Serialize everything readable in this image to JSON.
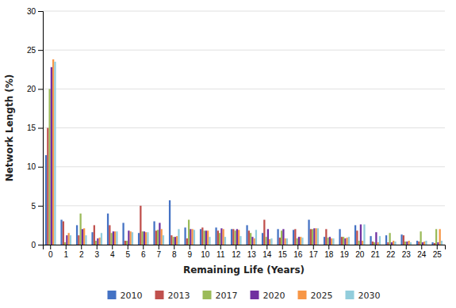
{
  "chart_data": {
    "type": "bar",
    "xlabel": "Remaining Life (Years)",
    "ylabel": "Network Length (%)",
    "categories": [
      0,
      1,
      2,
      3,
      4,
      5,
      6,
      7,
      8,
      9,
      10,
      11,
      12,
      13,
      14,
      15,
      16,
      17,
      18,
      19,
      20,
      21,
      22,
      23,
      24,
      25
    ],
    "series": [
      {
        "name": "2010",
        "color": "#4472C4",
        "values": [
          11.5,
          3.2,
          2.5,
          1.6,
          4.0,
          2.8,
          1.5,
          3.0,
          5.7,
          2.2,
          2.0,
          2.2,
          2.0,
          2.5,
          1.5,
          2.0,
          1.9,
          3.2,
          1.0,
          2.0,
          2.5,
          1.1,
          1.2,
          1.3,
          0.5,
          0.3
        ]
      },
      {
        "name": "2013",
        "color": "#C0504D",
        "values": [
          15.0,
          3.0,
          1.2,
          2.5,
          2.5,
          0.5,
          5.0,
          1.8,
          1.2,
          0.8,
          2.2,
          1.8,
          2.0,
          1.8,
          3.2,
          0.9,
          2.0,
          2.0,
          2.0,
          1.0,
          1.8,
          0.4,
          0.3,
          1.2,
          0.4,
          0.2
        ]
      },
      {
        "name": "2017",
        "color": "#9BBB59",
        "values": [
          20.0,
          0.3,
          4.0,
          0.5,
          1.5,
          0.5,
          1.7,
          1.9,
          1.0,
          3.2,
          1.8,
          1.5,
          1.8,
          1.5,
          1.0,
          1.8,
          0.8,
          2.0,
          0.9,
          1.0,
          0.5,
          0.3,
          1.5,
          0.4,
          1.7,
          2.0
        ]
      },
      {
        "name": "2020",
        "color": "#7030A0",
        "values": [
          22.8,
          1.2,
          2.0,
          0.8,
          1.7,
          1.8,
          1.7,
          2.8,
          1.0,
          2.0,
          1.8,
          2.1,
          2.0,
          1.0,
          2.0,
          2.0,
          1.0,
          2.1,
          1.0,
          0.8,
          2.6,
          1.6,
          0.3,
          0.4,
          0.3,
          0.3
        ]
      },
      {
        "name": "2025",
        "color": "#F79646",
        "values": [
          23.8,
          1.5,
          2.1,
          0.9,
          1.7,
          1.7,
          1.6,
          2.0,
          1.1,
          2.0,
          1.8,
          2.0,
          1.9,
          0.8,
          0.7,
          0.8,
          1.0,
          2.1,
          0.8,
          0.9,
          0.5,
          0.3,
          0.5,
          0.5,
          0.4,
          2.0
        ]
      },
      {
        "name": "2030",
        "color": "#92CDDC",
        "values": [
          23.5,
          1.2,
          1.2,
          1.5,
          1.7,
          1.6,
          1.6,
          1.2,
          2.0,
          1.9,
          1.0,
          1.0,
          1.1,
          1.9,
          0.8,
          0.8,
          0.9,
          2.1,
          0.8,
          1.0,
          2.6,
          1.1,
          0.4,
          0.3,
          0.5,
          0.5
        ]
      }
    ],
    "ylim": [
      0,
      30
    ],
    "yticks": [
      0,
      5,
      10,
      15,
      20,
      25,
      30
    ],
    "grid": true,
    "legend": "bottom"
  }
}
